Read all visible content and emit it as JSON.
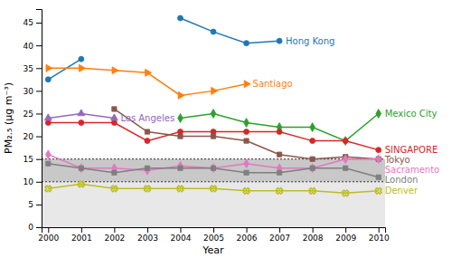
{
  "chart_data": {
    "type": "line",
    "xlabel": "Year",
    "ylabel": "PM₂.₅ (μg m⁻³)",
    "x": [
      2000,
      2001,
      2002,
      2003,
      2004,
      2005,
      2006,
      2007,
      2008,
      2009,
      2010
    ],
    "xlim": [
      1999.8,
      2010.2
    ],
    "xticks": [
      2000,
      2001,
      2002,
      2003,
      2004,
      2005,
      2006,
      2007,
      2008,
      2009,
      2010
    ],
    "ylim": [
      0,
      48
    ],
    "yticks": [
      0,
      5,
      10,
      15,
      20,
      25,
      30,
      35,
      40,
      45
    ],
    "grid": false,
    "reference_lines": [
      10,
      15
    ],
    "series": [
      {
        "name": "Hong Kong",
        "marker": "circle",
        "values": [
          32.5,
          37,
          null,
          null,
          46,
          43,
          40.5,
          41,
          null,
          null,
          null
        ]
      },
      {
        "name": "Santiago",
        "marker": "triangle-right",
        "values": [
          35,
          35,
          34.5,
          34,
          29,
          30,
          31.5,
          null,
          null,
          null,
          null
        ]
      },
      {
        "name": "Mexico City",
        "marker": "diamond",
        "values": [
          null,
          null,
          null,
          null,
          24,
          25,
          23,
          22,
          22,
          19,
          25
        ]
      },
      {
        "name": "SINGAPORE",
        "marker": "circle",
        "values": [
          23,
          23,
          23,
          19,
          21,
          21,
          21,
          21,
          19,
          19,
          17
        ]
      },
      {
        "name": "Los Angeles",
        "marker": "triangle-up",
        "values": [
          24,
          25,
          24,
          null,
          null,
          null,
          null,
          null,
          null,
          null,
          null
        ]
      },
      {
        "name": "Tokyo",
        "marker": "square",
        "values": [
          null,
          null,
          26,
          21,
          20,
          20,
          19,
          16,
          15,
          15.5,
          15
        ]
      },
      {
        "name": "Sacramento",
        "marker": "diamond",
        "values": [
          16,
          13,
          13,
          12.5,
          13.5,
          13,
          14,
          13,
          13,
          15,
          15
        ]
      },
      {
        "name": "London",
        "marker": "square",
        "values": [
          14,
          13,
          12,
          13,
          13,
          13,
          12,
          12,
          13,
          13,
          11
        ]
      },
      {
        "name": "Denver",
        "marker": "x",
        "values": [
          8.5,
          9.5,
          8.5,
          8.5,
          8.5,
          8.5,
          8,
          8,
          8,
          7.5,
          8
        ]
      }
    ]
  }
}
